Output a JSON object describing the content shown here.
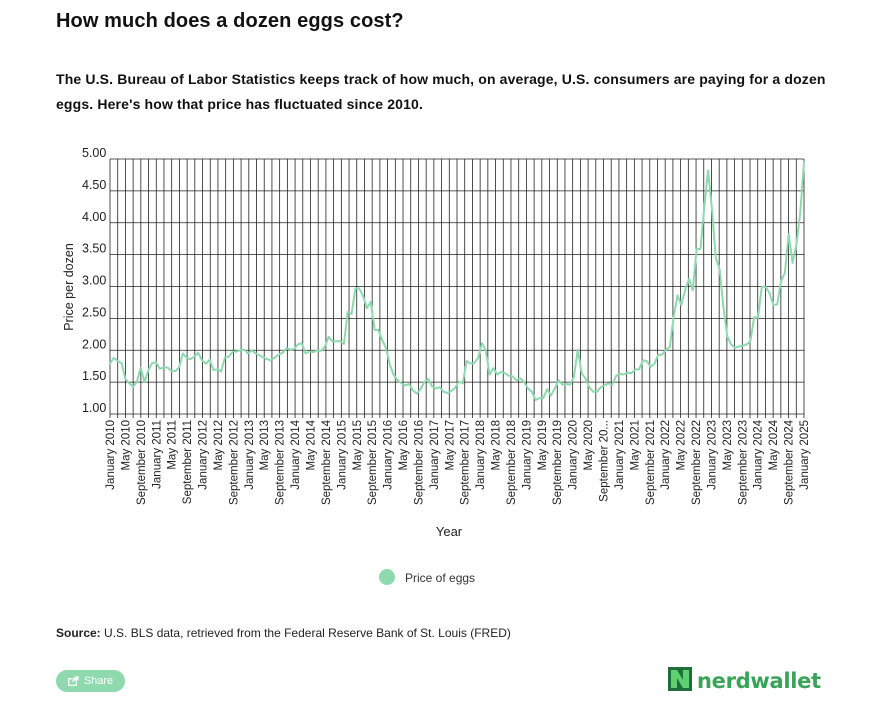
{
  "title": "How much does a dozen eggs cost?",
  "subtitle": "The U.S. Bureau of Labor Statistics keeps track of how much, on average, U.S. consumers are paying for a dozen eggs. Here's how that price has fluctuated since 2010.",
  "source": {
    "label": "Source:",
    "text": " U.S. BLS data, retrieved from the Federal Reserve Bank of St. Louis (FRED)"
  },
  "share": {
    "label": "Share",
    "icon": "share-icon"
  },
  "brand": {
    "name": "nerdwallet",
    "color": "#3aa35a"
  },
  "colors": {
    "line": "#8ed9ae",
    "grid": "#222222"
  },
  "chart_data": {
    "type": "line",
    "title": "",
    "xlabel": "Year",
    "ylabel": "Price per dozen",
    "ylim": [
      1.0,
      5.0
    ],
    "yticks": [
      "1.00",
      "1.50",
      "2.00",
      "2.50",
      "3.00",
      "3.50",
      "4.00",
      "4.50",
      "5.00"
    ],
    "grid": true,
    "legend": "bottom-center",
    "x_start": "January 2010",
    "x_end": "January 2025",
    "x_tick_labels": [
      "January 2010",
      "May 2010",
      "September 2010",
      "January 2011",
      "May 2011",
      "September 2011",
      "January 2012",
      "May 2012",
      "September 2012",
      "January 2013",
      "May 2013",
      "September 2013",
      "January 2014",
      "May 2014",
      "September 2014",
      "January 2015",
      "May 2015",
      "September 2015",
      "January 2016",
      "May 2016",
      "September 2016",
      "January 2017",
      "May 2017",
      "September 2017",
      "January 2018",
      "May 2018",
      "September 2018",
      "January 2019",
      "May 2019",
      "September 2019",
      "January 2020",
      "May 2020",
      "September 20...",
      "January 2021",
      "May 2021",
      "September 2021",
      "January 2022",
      "May 2022",
      "September 2022",
      "January 2023",
      "May 2023",
      "September 2023",
      "January 2024",
      "May 2024",
      "September 2024",
      "January 2025"
    ],
    "series": [
      {
        "name": "Price of eggs",
        "values": [
          1.79,
          1.88,
          1.83,
          1.8,
          1.55,
          1.48,
          1.43,
          1.5,
          1.73,
          1.5,
          1.68,
          1.8,
          1.81,
          1.71,
          1.73,
          1.73,
          1.68,
          1.67,
          1.73,
          1.95,
          1.88,
          1.86,
          1.9,
          1.96,
          1.84,
          1.79,
          1.85,
          1.69,
          1.7,
          1.67,
          1.89,
          1.9,
          1.98,
          1.98,
          2.0,
          2.01,
          1.95,
          2.0,
          1.95,
          1.92,
          1.89,
          1.86,
          1.84,
          1.89,
          1.93,
          1.96,
          2.03,
          2.01,
          2.02,
          2.09,
          2.11,
          1.95,
          1.98,
          1.97,
          2.0,
          1.99,
          2.05,
          2.21,
          2.14,
          2.14,
          2.14,
          2.1,
          2.6,
          2.57,
          2.97,
          2.97,
          2.85,
          2.66,
          2.76,
          2.32,
          2.32,
          2.16,
          2.03,
          1.77,
          1.61,
          1.53,
          1.48,
          1.45,
          1.47,
          1.37,
          1.32,
          1.39,
          1.5,
          1.55,
          1.43,
          1.4,
          1.42,
          1.35,
          1.33,
          1.36,
          1.41,
          1.51,
          1.48,
          1.83,
          1.79,
          1.8,
          1.88,
          2.11,
          2.0,
          1.62,
          1.72,
          1.62,
          1.66,
          1.64,
          1.6,
          1.59,
          1.53,
          1.56,
          1.5,
          1.4,
          1.35,
          1.22,
          1.25,
          1.25,
          1.39,
          1.29,
          1.4,
          1.53,
          1.46,
          1.47,
          1.46,
          1.58,
          2.01,
          1.64,
          1.56,
          1.42,
          1.35,
          1.35,
          1.42,
          1.45,
          1.48,
          1.46,
          1.6,
          1.63,
          1.62,
          1.65,
          1.64,
          1.7,
          1.7,
          1.84,
          1.83,
          1.74,
          1.79,
          1.93,
          1.93,
          2.01,
          2.05,
          2.52,
          2.86,
          2.71,
          2.94,
          3.12,
          2.94,
          3.59,
          3.59,
          4.25,
          4.82,
          4.21,
          3.45,
          3.27,
          2.67,
          2.22,
          2.09,
          2.04,
          2.06,
          2.07,
          2.09,
          2.14,
          2.52,
          2.51,
          3.0,
          2.99,
          2.9,
          2.71,
          2.72,
          3.08,
          3.21,
          3.82,
          3.37,
          3.65,
          4.15,
          4.95
        ]
      }
    ]
  }
}
